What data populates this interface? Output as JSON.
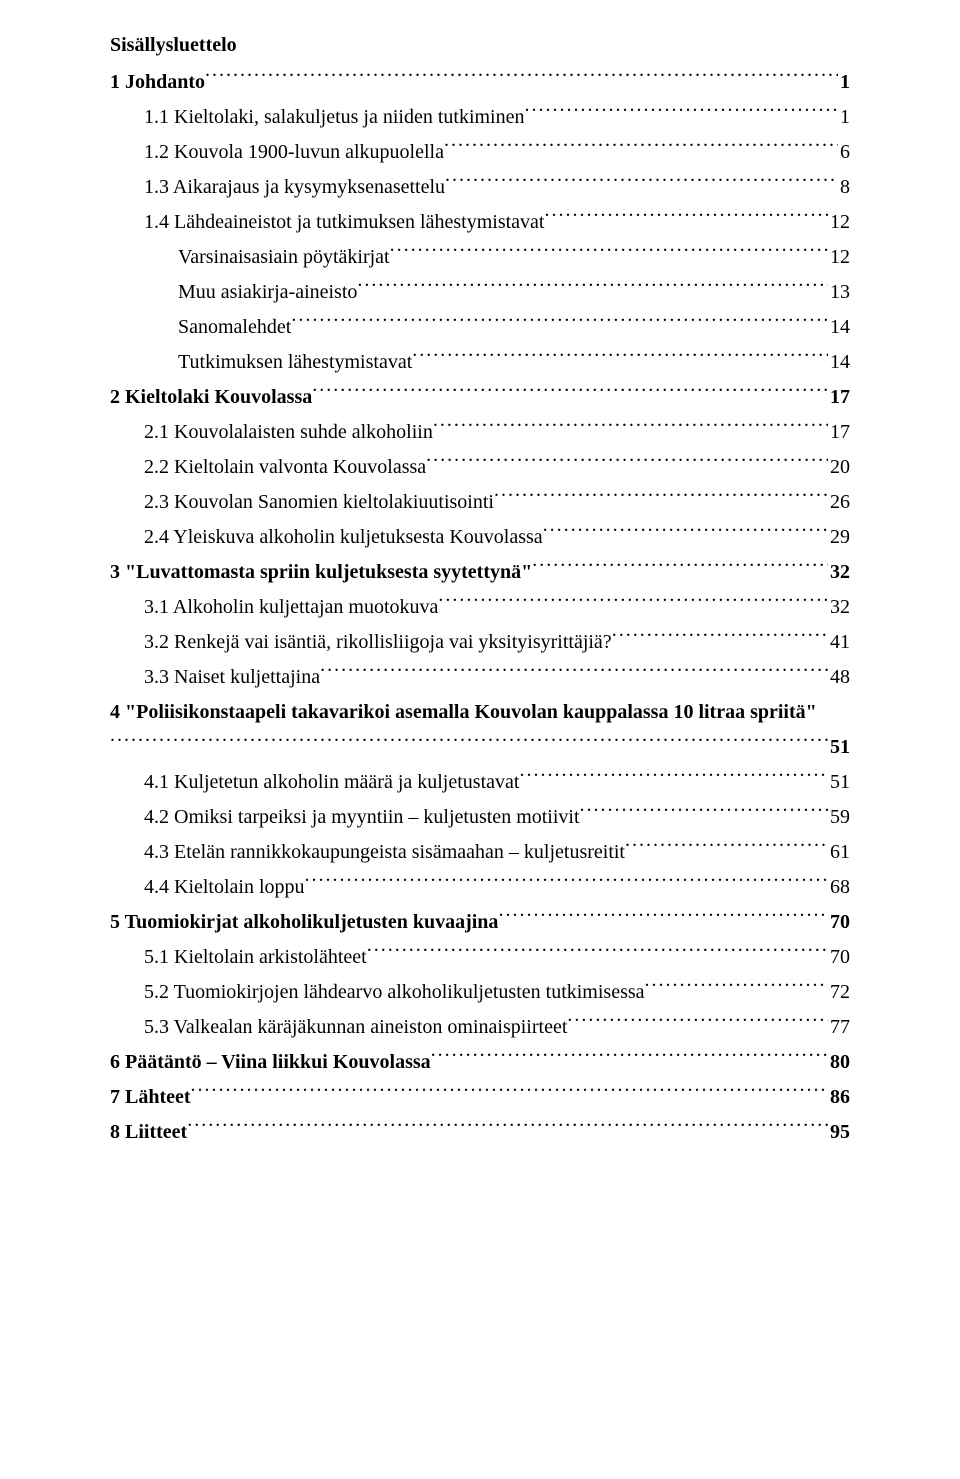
{
  "title": "Sisällysluettelo",
  "entries": [
    {
      "label": "1 Johdanto",
      "page": "1",
      "bold": true,
      "indent": 0
    },
    {
      "label": "1.1 Kieltolaki, salakuljetus ja niiden tutkiminen",
      "page": "1",
      "bold": false,
      "indent": 1
    },
    {
      "label": "1.2 Kouvola 1900-luvun alkupuolella",
      "page": "6",
      "bold": false,
      "indent": 1
    },
    {
      "label": "1.3 Aikarajaus ja kysymyksenasettelu",
      "page": "8",
      "bold": false,
      "indent": 1
    },
    {
      "label": "1.4 Lähdeaineistot ja tutkimuksen lähestymistavat",
      "page": "12",
      "bold": false,
      "indent": 1
    },
    {
      "label": "Varsinaisasiain pöytäkirjat",
      "page": "12",
      "bold": false,
      "indent": 2
    },
    {
      "label": "Muu asiakirja-aineisto",
      "page": "13",
      "bold": false,
      "indent": 2
    },
    {
      "label": "Sanomalehdet",
      "page": "14",
      "bold": false,
      "indent": 2
    },
    {
      "label": "Tutkimuksen lähestymistavat",
      "page": "14",
      "bold": false,
      "indent": 2
    },
    {
      "label": "2 Kieltolaki Kouvolassa",
      "page": "17",
      "bold": true,
      "indent": 0
    },
    {
      "label": "2.1 Kouvolalaisten suhde alkoholiin",
      "page": "17",
      "bold": false,
      "indent": 1
    },
    {
      "label": "2.2 Kieltolain valvonta Kouvolassa",
      "page": "20",
      "bold": false,
      "indent": 1
    },
    {
      "label": "2.3 Kouvolan Sanomien kieltolakiuutisointi",
      "page": "26",
      "bold": false,
      "indent": 1
    },
    {
      "label": "2.4 Yleiskuva alkoholin kuljetuksesta Kouvolassa",
      "page": "29",
      "bold": false,
      "indent": 1
    },
    {
      "label": "3 \"Luvattomasta spriin kuljetuksesta syytettynä\"",
      "page": "32",
      "bold": true,
      "indent": 0
    },
    {
      "label": "3.1 Alkoholin kuljettajan muotokuva",
      "page": "32",
      "bold": false,
      "indent": 1
    },
    {
      "label": "3.2 Renkejä vai isäntiä, rikollisliigoja vai yksityisyrittäjiä?",
      "page": "41",
      "bold": false,
      "indent": 1
    },
    {
      "label": "3.3 Naiset kuljettajina",
      "page": "48",
      "bold": false,
      "indent": 1
    },
    {
      "label": "4 \"Poliisikonstaapeli takavarikoi asemalla Kouvolan kauppalassa 10 litraa spriitä\"",
      "page": "51",
      "bold": true,
      "indent": 0,
      "multiline": true
    },
    {
      "label": "4.1 Kuljetetun alkoholin määrä ja kuljetustavat",
      "page": "51",
      "bold": false,
      "indent": 1
    },
    {
      "label": "4.2 Omiksi tarpeiksi ja myyntiin – kuljetusten motiivit",
      "page": "59",
      "bold": false,
      "indent": 1
    },
    {
      "label": "4.3 Etelän rannikkokaupungeista sisämaahan – kuljetusreitit",
      "page": "61",
      "bold": false,
      "indent": 1
    },
    {
      "label": "4.4 Kieltolain loppu",
      "page": "68",
      "bold": false,
      "indent": 1
    },
    {
      "label": "5 Tuomiokirjat alkoholikuljetusten kuvaajina",
      "page": "70",
      "bold": true,
      "indent": 0
    },
    {
      "label": "5.1 Kieltolain arkistolähteet",
      "page": "70",
      "bold": false,
      "indent": 1
    },
    {
      "label": "5.2 Tuomiokirjojen lähdearvo alkoholikuljetusten tutkimisessa",
      "page": "72",
      "bold": false,
      "indent": 1
    },
    {
      "label": "5.3 Valkealan käräjäkunnan aineiston ominaispiirteet",
      "page": "77",
      "bold": false,
      "indent": 1
    },
    {
      "label": "6 Päätäntö – Viina liikkui Kouvolassa",
      "page": "80",
      "bold": true,
      "indent": 0
    },
    {
      "label": "7 Lähteet",
      "page": "86",
      "bold": true,
      "indent": 0
    },
    {
      "label": "8 Liitteet",
      "page": "95",
      "bold": true,
      "indent": 0
    }
  ]
}
